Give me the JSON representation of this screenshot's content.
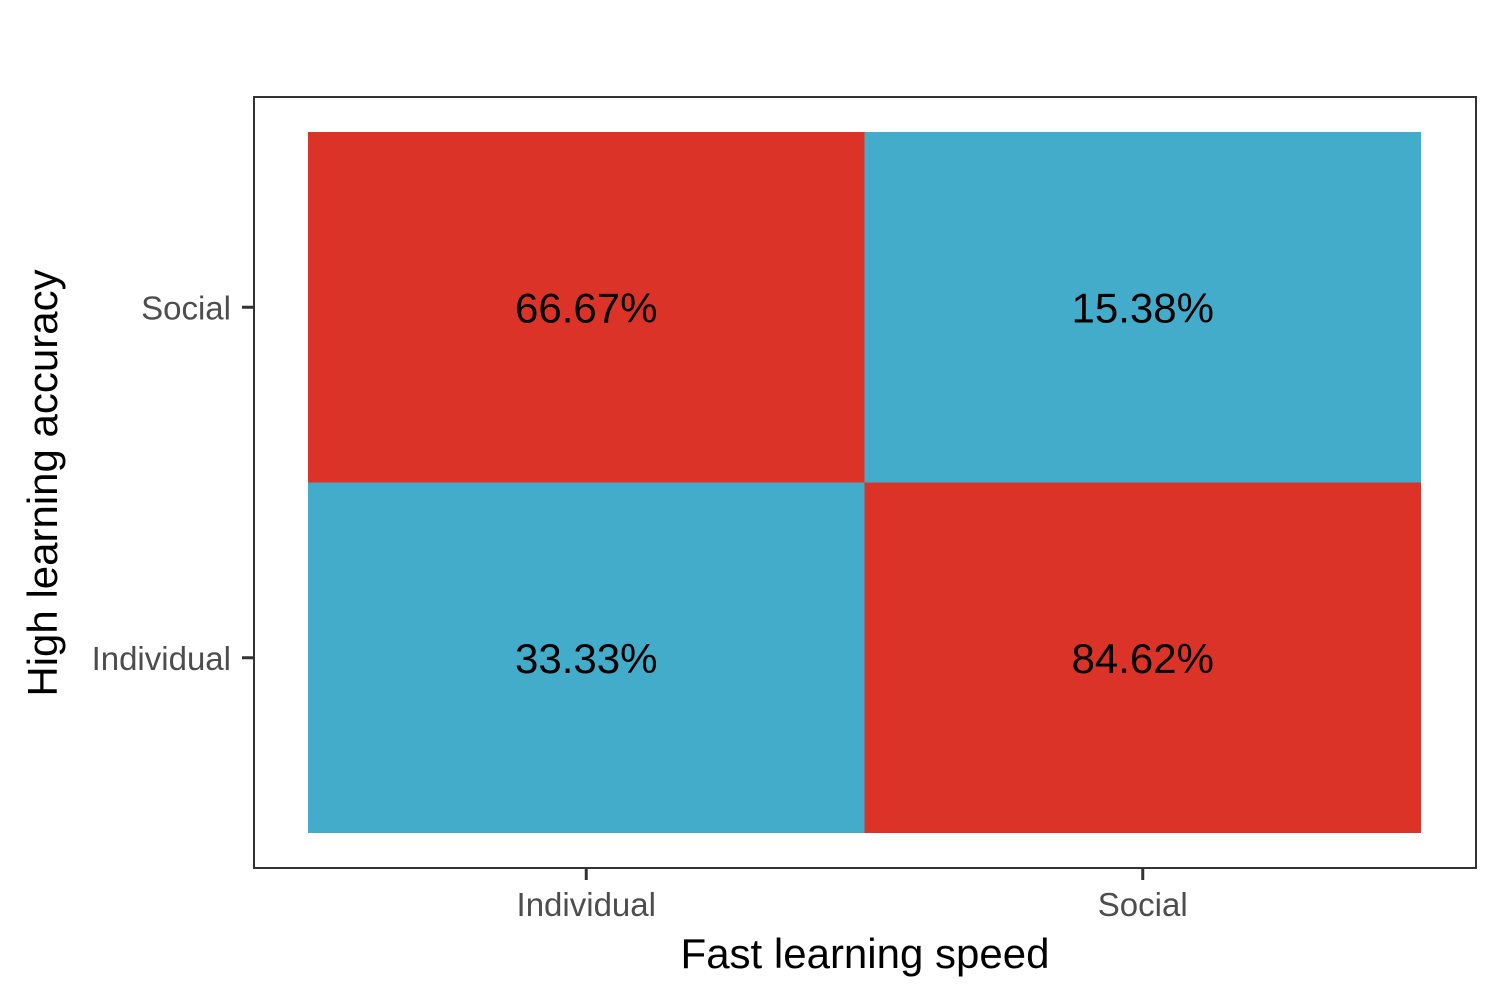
{
  "chart_data": {
    "type": "heatmap",
    "title": "",
    "xlabel": "Fast learning speed",
    "ylabel": "High learning accuracy",
    "x_categories": [
      "Individual",
      "Social"
    ],
    "y_categories": [
      "Individual",
      "Social"
    ],
    "cells": [
      {
        "x": "Individual",
        "y": "Social",
        "value": 66.67,
        "label": "66.67%",
        "color": "#dc3328"
      },
      {
        "x": "Social",
        "y": "Social",
        "value": 15.38,
        "label": "15.38%",
        "color": "#43acca"
      },
      {
        "x": "Individual",
        "y": "Individual",
        "value": 33.33,
        "label": "33.33%",
        "color": "#43acca"
      },
      {
        "x": "Social",
        "y": "Individual",
        "value": 84.62,
        "label": "84.62%",
        "color": "#dc3328"
      }
    ],
    "grid": false,
    "legend": "none",
    "panel_border_color": "#333333"
  }
}
